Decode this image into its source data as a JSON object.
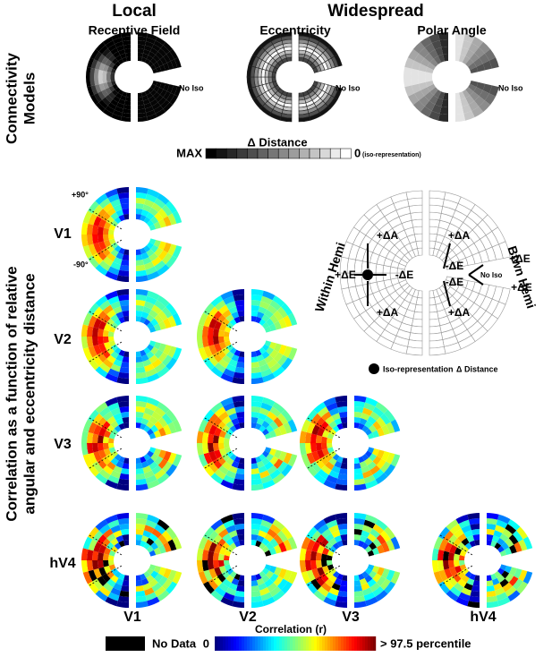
{
  "header": {
    "local": "Local",
    "widespread": "Widespread"
  },
  "models": {
    "side_label": [
      "Connectivity",
      "Models"
    ],
    "items": [
      {
        "title": "Receptive Field",
        "no_iso": "No Iso"
      },
      {
        "title": "Eccentricity",
        "no_iso": "No Iso"
      },
      {
        "title": "Polar Angle",
        "no_iso": "No Iso"
      }
    ]
  },
  "distance_scale": {
    "title": "Δ Distance",
    "max": "MAX",
    "zero": "0",
    "zero_note": "(iso-representation)"
  },
  "correlation": {
    "side_label": [
      "Correlation as a function of relative",
      "angular and eccentricity distance"
    ],
    "rows": [
      "V1",
      "V2",
      "V3",
      "hV4"
    ],
    "columns": [
      "V1",
      "V2",
      "V3",
      "hV4"
    ],
    "angle_top": "+90°",
    "angle_bottom": "-90°"
  },
  "schematic": {
    "within": "Within Hemi",
    "between": "Btwn Hemi",
    "within_labels": [
      "+ΔA",
      "+ΔE",
      "-ΔE",
      "+ΔA"
    ],
    "between_labels": [
      "+ΔA",
      "-ΔE",
      "+ΔE",
      "-ΔE",
      "+ΔE",
      "+ΔA"
    ],
    "no_iso": "No Iso",
    "legend_iso": "Iso-representation",
    "legend_distance": "Δ Distance"
  },
  "colorbar": {
    "no_data": "No Data",
    "title": "Correlation (r)",
    "min": "0",
    "max": "> 97.5 percentile"
  }
}
